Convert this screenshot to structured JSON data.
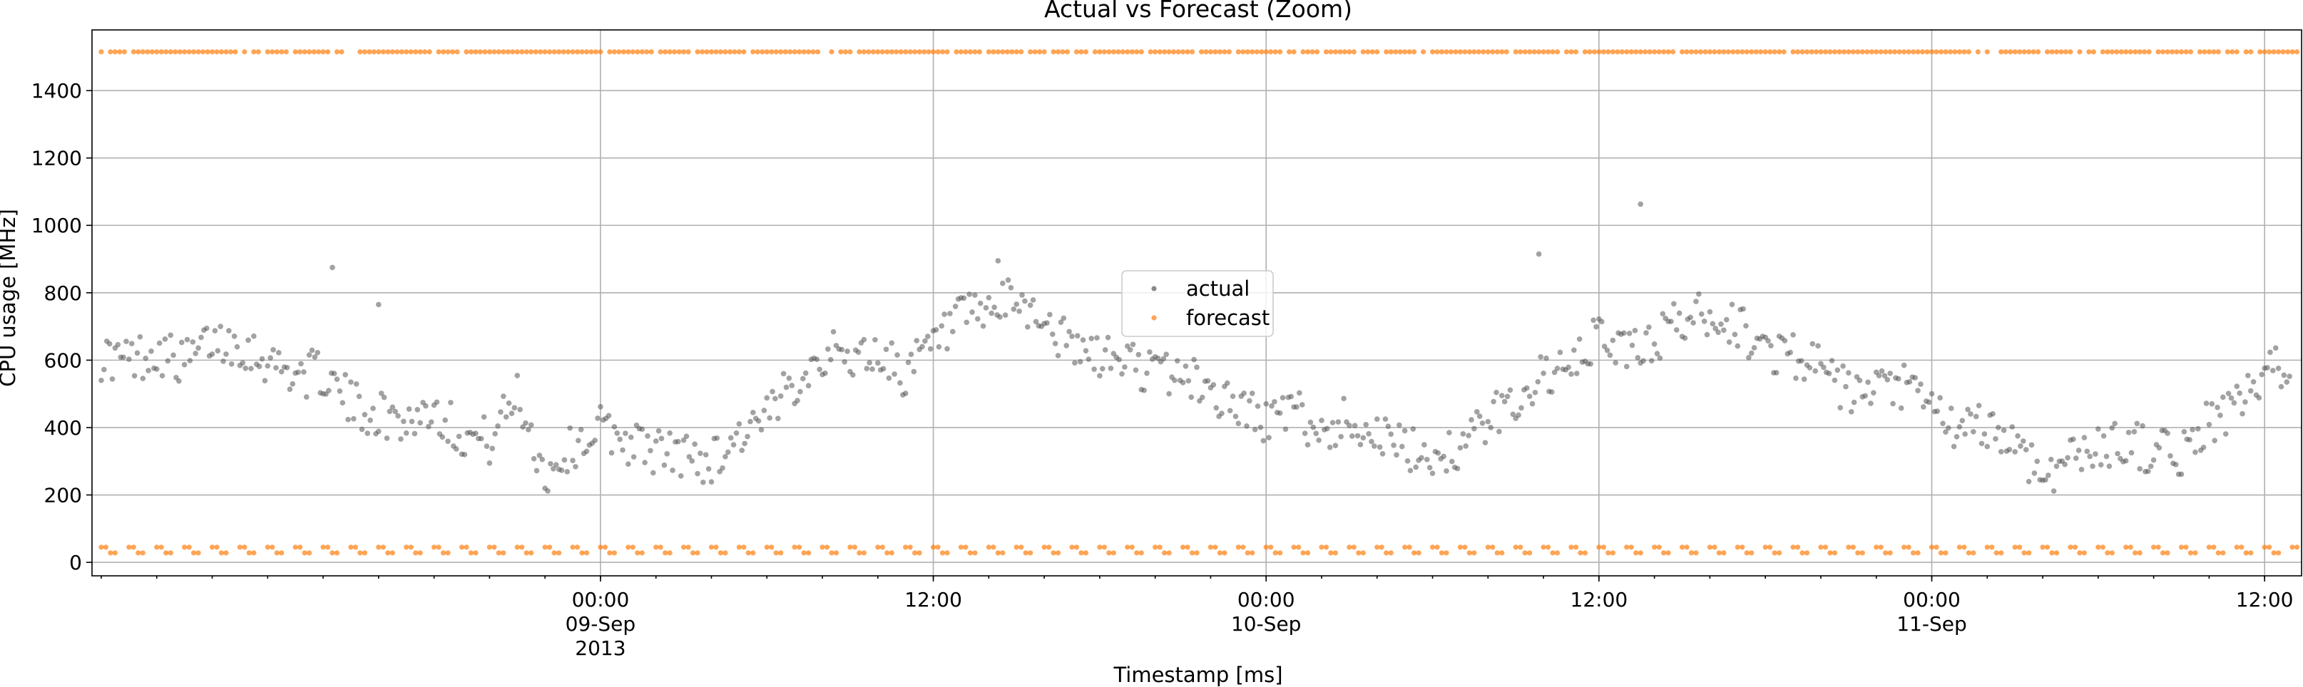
{
  "chart_data": {
    "type": "scatter",
    "title": "Actual vs Forecast (Zoom)",
    "xlabel": "Timestamp [ms]",
    "ylabel": "CPU usage [MHz]",
    "xlim": [
      "2013-09-08 05:40",
      "2013-09-11 13:20"
    ],
    "ylim": [
      -40,
      1580
    ],
    "yticks": [
      0,
      200,
      400,
      600,
      800,
      1000,
      1200,
      1400
    ],
    "xticks": [
      {
        "value": "2013-09-09 00:00",
        "label": "00:00",
        "sublabel": "09-Sep",
        "year": "2013"
      },
      {
        "value": "2013-09-09 12:00",
        "label": "12:00",
        "sublabel": "",
        "year": ""
      },
      {
        "value": "2013-09-10 00:00",
        "label": "00:00",
        "sublabel": "10-Sep",
        "year": ""
      },
      {
        "value": "2013-09-10 12:00",
        "label": "12:00",
        "sublabel": "",
        "year": ""
      },
      {
        "value": "2013-09-11 00:00",
        "label": "00:00",
        "sublabel": "11-Sep",
        "year": ""
      },
      {
        "value": "2013-09-11 12:00",
        "label": "12:00",
        "sublabel": "",
        "year": ""
      }
    ],
    "grid": true,
    "legend_position": "center",
    "series": [
      {
        "name": "actual",
        "color": "#555555",
        "x": [
          "2013-09-08 06:00",
          "2013-09-08 07:00",
          "2013-09-08 08:00",
          "2013-09-08 09:00",
          "2013-09-08 10:00",
          "2013-09-08 11:00",
          "2013-09-08 12:00",
          "2013-09-08 13:00",
          "2013-09-08 14:00",
          "2013-09-08 15:00",
          "2013-09-08 16:00",
          "2013-09-08 17:00",
          "2013-09-08 18:00",
          "2013-09-08 19:00",
          "2013-09-08 20:00",
          "2013-09-08 21:00",
          "2013-09-08 22:00",
          "2013-09-08 23:00",
          "2013-09-09 00:00",
          "2013-09-09 01:00",
          "2013-09-09 02:00",
          "2013-09-09 03:00",
          "2013-09-09 04:00",
          "2013-09-09 05:00",
          "2013-09-09 06:00",
          "2013-09-09 07:00",
          "2013-09-09 08:00",
          "2013-09-09 09:00",
          "2013-09-09 10:00",
          "2013-09-09 11:00",
          "2013-09-09 12:00",
          "2013-09-09 13:00",
          "2013-09-09 14:00",
          "2013-09-09 15:00",
          "2013-09-09 16:00",
          "2013-09-09 17:00",
          "2013-09-09 18:00",
          "2013-09-09 19:00",
          "2013-09-09 20:00",
          "2013-09-09 21:00",
          "2013-09-09 22:00",
          "2013-09-09 23:00",
          "2013-09-10 00:00",
          "2013-09-10 01:00",
          "2013-09-10 02:00",
          "2013-09-10 03:00",
          "2013-09-10 04:00",
          "2013-09-10 05:00",
          "2013-09-10 06:00",
          "2013-09-10 07:00",
          "2013-09-10 08:00",
          "2013-09-10 09:00",
          "2013-09-10 10:00",
          "2013-09-10 11:00",
          "2013-09-10 12:00",
          "2013-09-10 13:00",
          "2013-09-10 14:00",
          "2013-09-10 15:00",
          "2013-09-10 16:00",
          "2013-09-10 17:00",
          "2013-09-10 18:00",
          "2013-09-10 19:00",
          "2013-09-10 20:00",
          "2013-09-10 21:00",
          "2013-09-10 22:00",
          "2013-09-10 23:00",
          "2013-09-11 00:00",
          "2013-09-11 01:00",
          "2013-09-11 02:00",
          "2013-09-11 03:00",
          "2013-09-11 04:00",
          "2013-09-11 05:00",
          "2013-09-11 06:00",
          "2013-09-11 07:00",
          "2013-09-11 08:00",
          "2013-09-11 09:00",
          "2013-09-11 10:00",
          "2013-09-11 11:00",
          "2013-09-11 12:00",
          "2013-09-11 13:00"
        ],
        "y": [
          610,
          600,
          630,
          590,
          660,
          650,
          600,
          560,
          560,
          470,
          440,
          420,
          460,
          380,
          360,
          500,
          260,
          340,
          400,
          360,
          330,
          320,
          300,
          380,
          420,
          540,
          620,
          610,
          620,
          560,
          640,
          720,
          740,
          780,
          720,
          630,
          610,
          600,
          560,
          560,
          510,
          460,
          420,
          450,
          380,
          430,
          380,
          330,
          320,
          340,
          420,
          480,
          560,
          560,
          680,
          620,
          660,
          720,
          740,
          700,
          630,
          620,
          570,
          500,
          500,
          520,
          460,
          380,
          410,
          350,
          260,
          310,
          340,
          360,
          330,
          320,
          420,
          460,
          540,
          620
        ]
      },
      {
        "name": "forecast",
        "color": "#ff7f0e",
        "y_levels": [
          1515,
          45,
          28
        ]
      }
    ]
  }
}
